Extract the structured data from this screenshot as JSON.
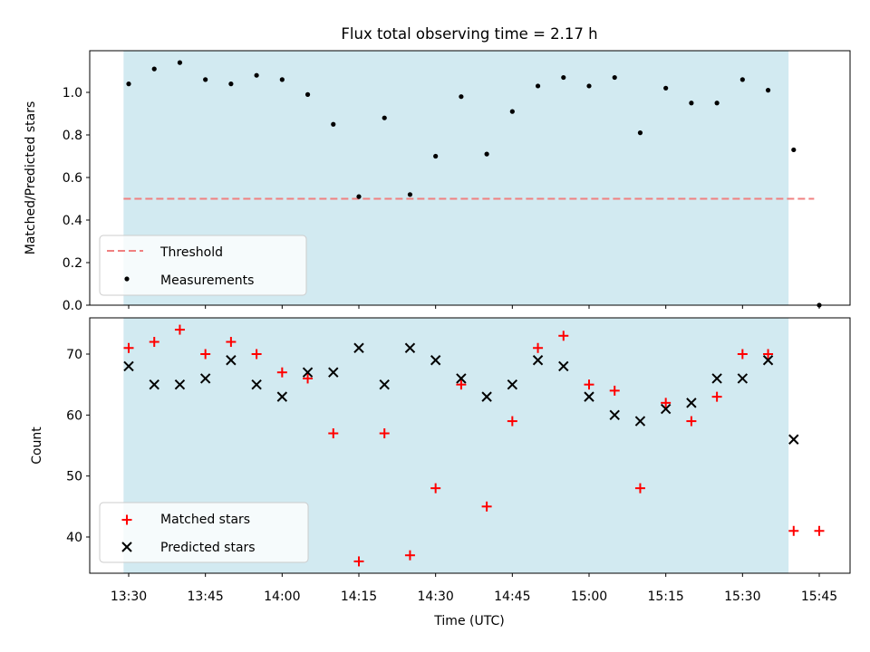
{
  "title": "Flux total observing time = 2.17 h",
  "xlabel": "Time (UTC)",
  "x_tick_labels": [
    "13:30",
    "13:45",
    "14:00",
    "14:15",
    "14:30",
    "14:45",
    "15:00",
    "15:15",
    "15:30",
    "15:45"
  ],
  "shaded_region": {
    "color": "#add8e6",
    "x_start": "13:29",
    "x_end": "15:39"
  },
  "chart_data": [
    {
      "type": "scatter",
      "panel": "top",
      "ylabel": "Matched/Predicted stars",
      "ylim": [
        0,
        1.2
      ],
      "yticks": [
        0.0,
        0.2,
        0.4,
        0.6,
        0.8,
        1.0
      ],
      "threshold": {
        "name": "Threshold",
        "value": 0.5,
        "x_start": "13:29",
        "x_end": "15:44",
        "color": "#f08080",
        "style": "dashed"
      },
      "legend": {
        "placement": "lower-left",
        "entries": [
          "Threshold",
          "Measurements"
        ]
      },
      "series": [
        {
          "name": "Measurements",
          "color": "#000000",
          "marker": "dot",
          "points": [
            [
              "13:30",
              1.04
            ],
            [
              "13:35",
              1.11
            ],
            [
              "13:40",
              1.14
            ],
            [
              "13:45",
              1.06
            ],
            [
              "13:50",
              1.04
            ],
            [
              "13:55",
              1.08
            ],
            [
              "14:00",
              1.06
            ],
            [
              "14:05",
              0.99
            ],
            [
              "14:10",
              0.85
            ],
            [
              "14:15",
              0.51
            ],
            [
              "14:20",
              0.88
            ],
            [
              "14:25",
              0.52
            ],
            [
              "14:30",
              0.7
            ],
            [
              "14:35",
              0.98
            ],
            [
              "14:40",
              0.71
            ],
            [
              "14:45",
              0.91
            ],
            [
              "14:50",
              1.03
            ],
            [
              "14:55",
              1.07
            ],
            [
              "15:00",
              1.03
            ],
            [
              "15:05",
              1.07
            ],
            [
              "15:10",
              0.81
            ],
            [
              "15:15",
              1.02
            ],
            [
              "15:20",
              0.95
            ],
            [
              "15:25",
              0.95
            ],
            [
              "15:30",
              1.06
            ],
            [
              "15:35",
              1.01
            ],
            [
              "15:40",
              0.73
            ],
            [
              "15:45",
              0.0
            ]
          ]
        }
      ]
    },
    {
      "type": "scatter",
      "panel": "bottom",
      "ylabel": "Count",
      "ylim": [
        34,
        77
      ],
      "yticks": [
        40,
        50,
        60,
        70
      ],
      "legend": {
        "placement": "lower-left",
        "entries": [
          "Matched stars",
          "Predicted stars"
        ]
      },
      "series": [
        {
          "name": "Matched stars",
          "color": "#ff0000",
          "marker": "plus",
          "points": [
            [
              "13:30",
              71
            ],
            [
              "13:35",
              72
            ],
            [
              "13:40",
              74
            ],
            [
              "13:45",
              70
            ],
            [
              "13:50",
              72
            ],
            [
              "13:55",
              70
            ],
            [
              "14:00",
              67
            ],
            [
              "14:05",
              66
            ],
            [
              "14:10",
              57
            ],
            [
              "14:15",
              36
            ],
            [
              "14:20",
              57
            ],
            [
              "14:25",
              37
            ],
            [
              "14:30",
              48
            ],
            [
              "14:35",
              65
            ],
            [
              "14:40",
              45
            ],
            [
              "14:45",
              59
            ],
            [
              "14:50",
              71
            ],
            [
              "14:55",
              73
            ],
            [
              "15:00",
              65
            ],
            [
              "15:05",
              64
            ],
            [
              "15:10",
              48
            ],
            [
              "15:15",
              62
            ],
            [
              "15:20",
              59
            ],
            [
              "15:25",
              63
            ],
            [
              "15:30",
              70
            ],
            [
              "15:35",
              70
            ],
            [
              "15:40",
              41
            ],
            [
              "15:45",
              41
            ]
          ]
        },
        {
          "name": "Predicted stars",
          "color": "#000000",
          "marker": "x",
          "points": [
            [
              "13:30",
              68
            ],
            [
              "13:35",
              65
            ],
            [
              "13:40",
              65
            ],
            [
              "13:45",
              66
            ],
            [
              "13:50",
              69
            ],
            [
              "13:55",
              65
            ],
            [
              "14:00",
              63
            ],
            [
              "14:05",
              67
            ],
            [
              "14:10",
              67
            ],
            [
              "14:15",
              71
            ],
            [
              "14:20",
              65
            ],
            [
              "14:25",
              71
            ],
            [
              "14:30",
              69
            ],
            [
              "14:35",
              66
            ],
            [
              "14:40",
              63
            ],
            [
              "14:45",
              65
            ],
            [
              "14:50",
              69
            ],
            [
              "14:55",
              68
            ],
            [
              "15:00",
              63
            ],
            [
              "15:05",
              60
            ],
            [
              "15:10",
              59
            ],
            [
              "15:15",
              61
            ],
            [
              "15:20",
              62
            ],
            [
              "15:25",
              66
            ],
            [
              "15:30",
              66
            ],
            [
              "15:35",
              69
            ],
            [
              "15:40",
              56
            ]
          ]
        }
      ]
    }
  ]
}
